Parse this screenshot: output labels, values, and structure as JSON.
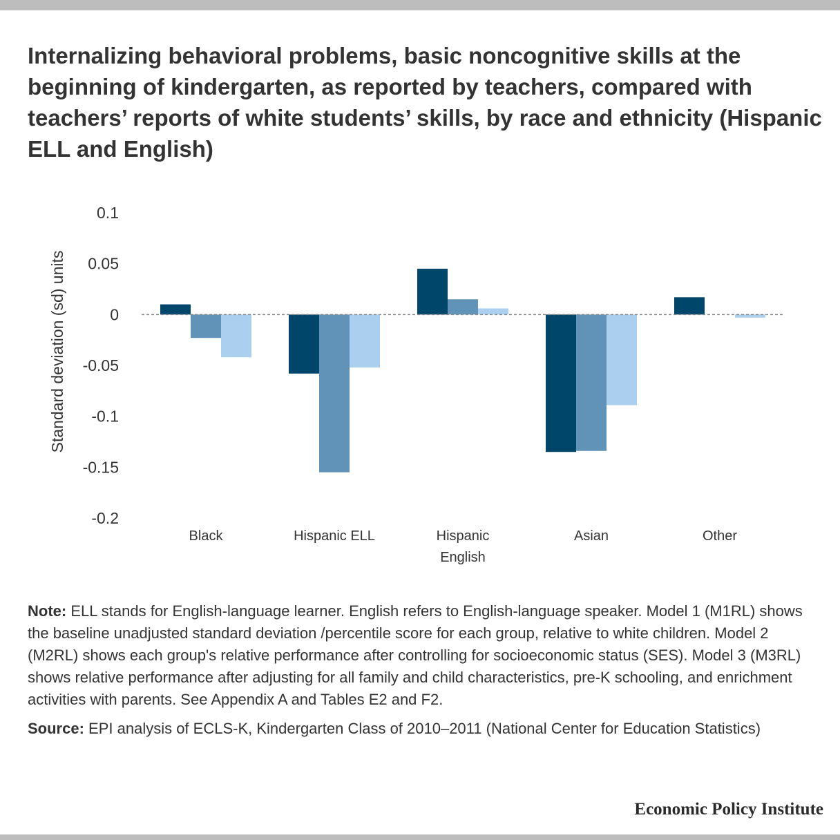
{
  "title": "Internalizing behavioral problems, basic noncognitive skills at the beginning of kindergarten, as reported by teachers, compared with teachers’ reports of white students’ skills, by race and ethnicity (Hispanic ELL and English)",
  "note": {
    "label": "Note:",
    "text": " ELL stands for English-language learner. English refers to English-language speaker. Model 1 (M1RL) shows the baseline unadjusted standard deviation /percentile score for each group, relative to white children. Model 2 (M2RL) shows each group's relative performance after controlling for socioeconomic status (SES). Model 3 (M3RL) shows relative performance after adjusting for all family and child characteristics, pre-K schooling, and enrichment activities with parents. See Appendix A and Tables E2 and F2."
  },
  "source": {
    "label": "Source:",
    "text": " EPI analysis of ECLS-K, Kindergarten Class of 2010–2011 (National Center for Education Statistics)"
  },
  "brand": "Economic Policy Institute",
  "colors": {
    "series": [
      "#00466b",
      "#6193b8",
      "#abcfef"
    ],
    "zero_line": "#888888",
    "text": "#333333",
    "border": "#bdbdbd"
  },
  "chart_data": {
    "type": "bar",
    "ylabel": "Standard deviation (sd) units",
    "ylim": [
      -0.2,
      0.1
    ],
    "yticks": [
      0.1,
      0.05,
      0,
      -0.05,
      -0.1,
      -0.15,
      -0.2
    ],
    "ytick_labels": [
      "0.1",
      "0.05",
      "0",
      "-0.05",
      "-0.1",
      "-0.15",
      "-0.2"
    ],
    "grid": false,
    "legend": "none",
    "categories": [
      [
        "Black"
      ],
      [
        "Hispanic ELL"
      ],
      [
        "Hispanic",
        "English"
      ],
      [
        "Asian"
      ],
      [
        "Other"
      ]
    ],
    "series": [
      {
        "values": [
          0.01,
          -0.058,
          0.045,
          -0.135,
          0.017
        ]
      },
      {
        "values": [
          -0.023,
          -0.155,
          0.015,
          -0.134,
          0.0
        ]
      },
      {
        "values": [
          -0.042,
          -0.052,
          0.006,
          -0.089,
          -0.003
        ]
      }
    ]
  }
}
